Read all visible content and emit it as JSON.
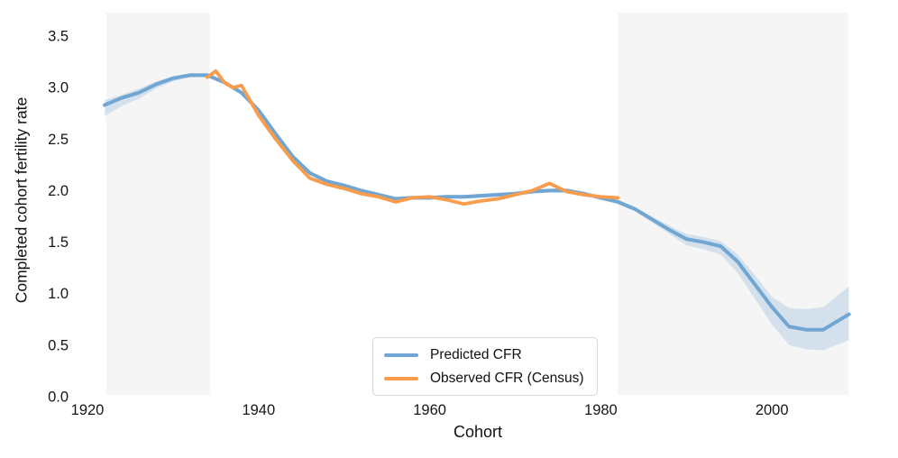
{
  "chart_data": {
    "type": "line",
    "title": "",
    "xlabel": "Cohort",
    "ylabel": "Completed cohort fertility rate",
    "xlim": [
      1918,
      2014
    ],
    "ylim": [
      0,
      3.76
    ],
    "grid": false,
    "background_color": "#ffffff",
    "text_color": "#161616",
    "xticks": [
      "1920",
      "1940",
      "1960",
      "1980",
      "2000"
    ],
    "yticks": [
      "0.0",
      "0.5",
      "1.0",
      "1.5",
      "2.0",
      "2.5",
      "3.0",
      "3.5"
    ],
    "legend": {
      "position": "inside-bottom-center",
      "border_color": "#d6d6d6"
    },
    "shaded_regions": [
      {
        "name": "early-cohorts-band",
        "x0": 1922.2,
        "x1": 1934.3,
        "color": "#f5f5f6"
      },
      {
        "name": "forecast-band",
        "x0": 1982.0,
        "x1": 2008.9,
        "color": "#f5f5f6"
      }
    ],
    "series": [
      {
        "name": "Predicted CFR",
        "color": "#71a5d2",
        "band_color": "#7fadd8",
        "band_opacity": 0.28,
        "x": [
          1922,
          1924,
          1926,
          1928,
          1930,
          1932,
          1934,
          1936,
          1938,
          1940,
          1942,
          1944,
          1946,
          1948,
          1950,
          1952,
          1954,
          1956,
          1958,
          1960,
          1962,
          1964,
          1966,
          1968,
          1970,
          1972,
          1974,
          1976,
          1978,
          1980,
          1982,
          1984,
          1986,
          1988,
          1990,
          1992,
          1994,
          1996,
          1998,
          2000,
          2002,
          2004,
          2006,
          2009
        ],
        "y": [
          2.83,
          2.9,
          2.95,
          3.03,
          3.09,
          3.12,
          3.12,
          3.05,
          2.95,
          2.78,
          2.55,
          2.33,
          2.17,
          2.09,
          2.05,
          2.0,
          1.96,
          1.92,
          1.93,
          1.93,
          1.94,
          1.94,
          1.95,
          1.96,
          1.97,
          1.99,
          2.0,
          2.0,
          1.97,
          1.93,
          1.89,
          1.82,
          1.72,
          1.62,
          1.53,
          1.5,
          1.46,
          1.31,
          1.09,
          0.87,
          0.68,
          0.65,
          0.65,
          0.8
        ],
        "lower": [
          2.72,
          2.82,
          2.89,
          2.99,
          3.06,
          3.1,
          3.1,
          3.03,
          2.93,
          2.76,
          2.53,
          2.31,
          2.15,
          2.07,
          2.03,
          1.98,
          1.94,
          1.9,
          1.91,
          1.91,
          1.92,
          1.92,
          1.93,
          1.94,
          1.95,
          1.97,
          1.98,
          1.98,
          1.95,
          1.91,
          1.87,
          1.8,
          1.69,
          1.58,
          1.47,
          1.43,
          1.38,
          1.2,
          0.95,
          0.7,
          0.5,
          0.46,
          0.45,
          0.55
        ],
        "upper": [
          2.88,
          2.93,
          2.99,
          3.06,
          3.11,
          3.14,
          3.14,
          3.07,
          2.97,
          2.8,
          2.57,
          2.35,
          2.19,
          2.11,
          2.07,
          2.02,
          1.98,
          1.94,
          1.95,
          1.95,
          1.96,
          1.96,
          1.97,
          1.98,
          1.99,
          2.01,
          2.02,
          2.02,
          1.99,
          1.95,
          1.91,
          1.84,
          1.75,
          1.66,
          1.58,
          1.55,
          1.51,
          1.38,
          1.18,
          0.97,
          0.86,
          0.85,
          0.87,
          1.07
        ]
      },
      {
        "name": "Observed CFR (Census)",
        "color": "#f99c4b",
        "x": [
          1934,
          1935,
          1936,
          1937,
          1938,
          1940,
          1942,
          1944,
          1946,
          1948,
          1950,
          1952,
          1954,
          1956,
          1958,
          1960,
          1962,
          1964,
          1966,
          1968,
          1970,
          1972,
          1974,
          1976,
          1978,
          1980,
          1982
        ],
        "y": [
          3.1,
          3.16,
          3.05,
          3.0,
          3.02,
          2.73,
          2.5,
          2.29,
          2.12,
          2.06,
          2.02,
          1.97,
          1.94,
          1.89,
          1.93,
          1.94,
          1.91,
          1.87,
          1.9,
          1.92,
          1.96,
          2.0,
          2.07,
          1.99,
          1.96,
          1.94,
          1.93
        ]
      }
    ]
  }
}
